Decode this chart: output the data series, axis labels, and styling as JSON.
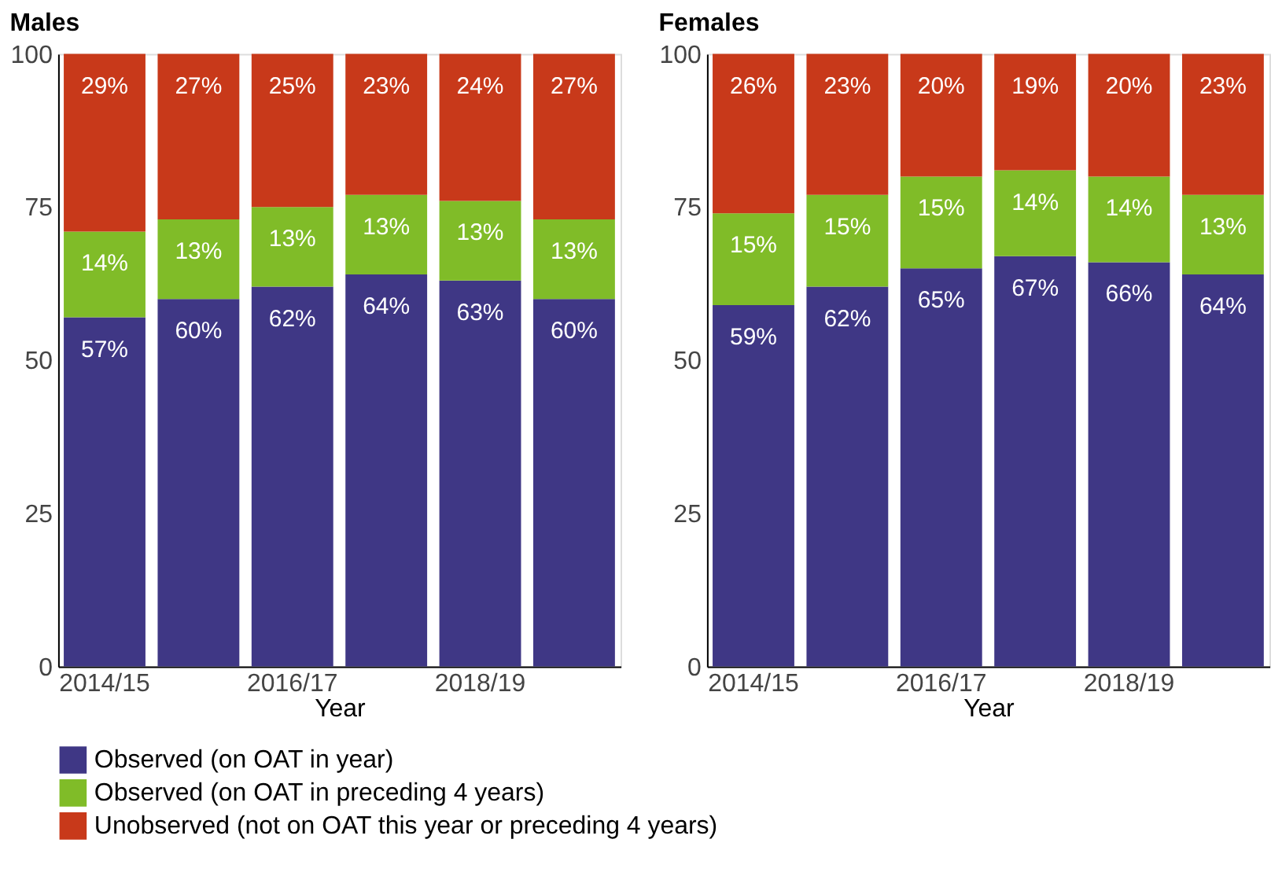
{
  "chart_data": [
    {
      "type": "bar",
      "title": "Males",
      "xlabel": "Year",
      "stacked": true,
      "categories": [
        "2014/15",
        null,
        "2016/17",
        null,
        "2018/19",
        null
      ],
      "ylim": [
        0,
        100
      ],
      "yticks": [
        0,
        25,
        50,
        75,
        100
      ],
      "grid": false,
      "legend": "bottom",
      "series": [
        {
          "name": "Observed (on OAT in year)",
          "color": "#3f3785",
          "values": [
            57,
            60,
            62,
            64,
            63,
            60
          ],
          "value_labels": [
            "57%",
            "60%",
            "62%",
            "64%",
            "63%",
            "60%"
          ]
        },
        {
          "name": "Observed (on OAT in preceding 4 years)",
          "color": "#80bc28",
          "values": [
            14,
            13,
            13,
            13,
            13,
            13
          ],
          "value_labels": [
            "14%",
            "13%",
            "13%",
            "13%",
            "13%",
            "13%"
          ]
        },
        {
          "name": "Unobserved (not on OAT this year or preceding 4 years)",
          "color": "#c8391a",
          "values": [
            29,
            27,
            25,
            23,
            24,
            27
          ],
          "value_labels": [
            "29%",
            "27%",
            "25%",
            "23%",
            "24%",
            "27%"
          ]
        }
      ]
    },
    {
      "type": "bar",
      "title": "Females",
      "xlabel": "Year",
      "stacked": true,
      "categories": [
        "2014/15",
        null,
        "2016/17",
        null,
        "2018/19",
        null
      ],
      "ylim": [
        0,
        100
      ],
      "yticks": [
        0,
        25,
        50,
        75,
        100
      ],
      "grid": false,
      "legend": "bottom",
      "series": [
        {
          "name": "Observed (on OAT in year)",
          "color": "#3f3785",
          "values": [
            59,
            62,
            65,
            67,
            66,
            64
          ],
          "value_labels": [
            "59%",
            "62%",
            "65%",
            "67%",
            "66%",
            "64%"
          ]
        },
        {
          "name": "Observed (on OAT in preceding 4 years)",
          "color": "#80bc28",
          "values": [
            15,
            15,
            15,
            14,
            14,
            13
          ],
          "value_labels": [
            "15%",
            "15%",
            "15%",
            "14%",
            "14%",
            "13%"
          ]
        },
        {
          "name": "Unobserved (not on OAT this year or preceding 4 years)",
          "color": "#c8391a",
          "values": [
            26,
            23,
            20,
            19,
            20,
            23
          ],
          "value_labels": [
            "26%",
            "23%",
            "20%",
            "19%",
            "20%",
            "23%"
          ]
        }
      ]
    }
  ]
}
